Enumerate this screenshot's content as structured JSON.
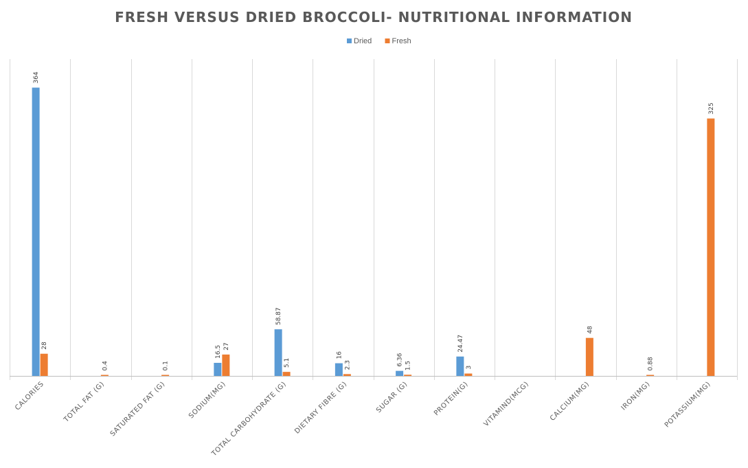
{
  "chart_data": {
    "type": "bar",
    "title": "FRESH VERSUS DRIED BROCCOLI- NUTRITIONAL INFORMATION",
    "xlabel": "",
    "ylabel": "",
    "ylim": [
      0,
      400
    ],
    "grid": "vertical category separators",
    "legend": "top-center",
    "categories": [
      "CALORIES",
      "TOTAL FAT (G)",
      "SATURATED FAT (G)",
      "SODIUM(MG)",
      "TOTAL CARBOHYDRATE (G)",
      "DIETARY FIBRE (G)",
      "SUGAR (G)",
      "PROTEIN(G)",
      "VITAMIND(MCG)",
      "CALCIUM(MG)",
      "IRON(MG)",
      "POTASSIUM(MG)"
    ],
    "series": [
      {
        "name": "Dried",
        "color": "#5b9bd5",
        "values": [
          364,
          null,
          null,
          16.5,
          58.87,
          16,
          6.36,
          24.47,
          null,
          null,
          null,
          null
        ],
        "labels": [
          "364",
          "",
          "",
          "16.5",
          "58.87",
          "16",
          "6.36",
          "24.47",
          "",
          "",
          "",
          ""
        ]
      },
      {
        "name": "Fresh",
        "color": "#ed7d31",
        "values": [
          28,
          0.4,
          0.1,
          27,
          5.1,
          2.3,
          1.5,
          3,
          null,
          48,
          0.88,
          325
        ],
        "labels": [
          "28",
          "0.4",
          "0.1",
          "27",
          "5.1",
          "2.3",
          "1.5",
          "3",
          "",
          "48",
          "0.88",
          "325"
        ]
      }
    ]
  }
}
